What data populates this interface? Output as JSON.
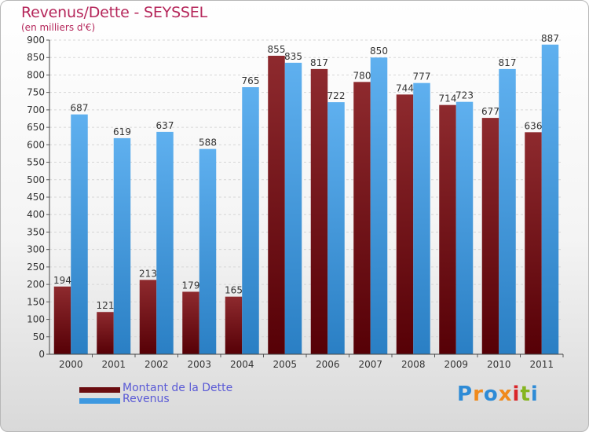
{
  "title": "Revenus/Dette - SEYSSEL",
  "subtitle": "(en milliers d'€)",
  "logo": [
    "P",
    "r",
    "o",
    "x",
    "i",
    "t",
    "i"
  ],
  "logo_colors": [
    "#2e8bd6",
    "#f08a1c",
    "#2e8bd6",
    "#f08a1c",
    "#d9262a",
    "#86b520",
    "#2e8bd6"
  ],
  "chart_data": {
    "type": "bar",
    "categories": [
      "2000",
      "2001",
      "2002",
      "2003",
      "2004",
      "2005",
      "2006",
      "2007",
      "2008",
      "2009",
      "2010",
      "2011"
    ],
    "series": [
      {
        "name": "Montant de la Dette",
        "color": "#7a1418",
        "values": [
          194,
          121,
          213,
          179,
          165,
          855,
          817,
          780,
          744,
          714,
          677,
          636
        ]
      },
      {
        "name": "Revenus",
        "color": "#3d98e0",
        "values": [
          687,
          619,
          637,
          588,
          765,
          835,
          722,
          850,
          777,
          723,
          817,
          887
        ]
      }
    ],
    "ylim": [
      0,
      900
    ],
    "yticks": [
      0,
      50,
      100,
      150,
      200,
      250,
      300,
      350,
      400,
      450,
      500,
      550,
      600,
      650,
      700,
      750,
      800,
      850,
      900
    ],
    "grid": true,
    "legend": "bottom-left"
  }
}
